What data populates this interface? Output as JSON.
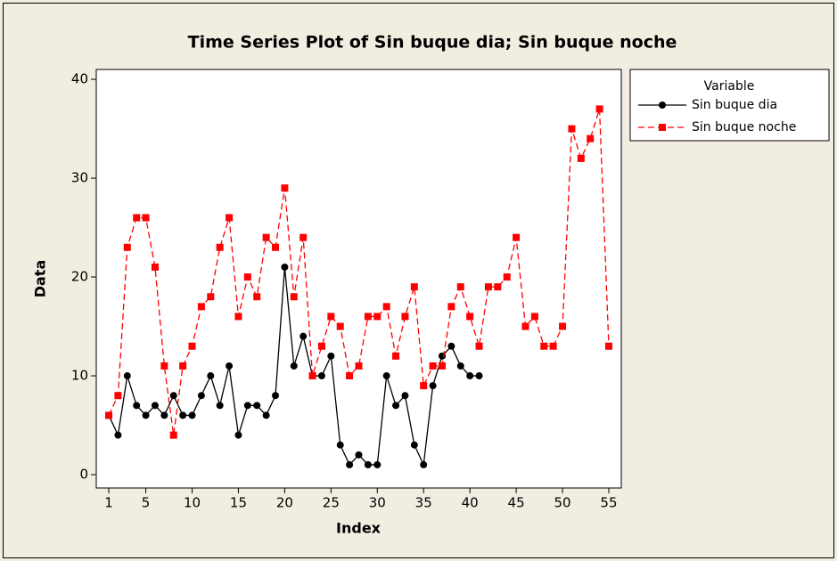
{
  "chart_data": {
    "type": "line",
    "title": "Time Series Plot of Sin buque dia; Sin buque noche",
    "xlabel": "Index",
    "ylabel": "Data",
    "legend_title": "Variable",
    "legend": "right",
    "x": [
      1,
      2,
      3,
      4,
      5,
      6,
      7,
      8,
      9,
      10,
      11,
      12,
      13,
      14,
      15,
      16,
      17,
      18,
      19,
      20,
      21,
      22,
      23,
      24,
      25,
      26,
      27,
      28,
      29,
      30,
      31,
      32,
      33,
      34,
      35,
      36,
      37,
      38,
      39,
      40,
      41,
      42,
      43,
      44,
      45,
      46,
      47,
      48,
      49,
      50,
      51,
      52,
      53,
      54,
      55
    ],
    "series": [
      {
        "name": "Sin buque dia",
        "color": "#000000",
        "marker": "circle",
        "dashed": false,
        "values": [
          6,
          4,
          10,
          7,
          6,
          7,
          6,
          8,
          6,
          6,
          8,
          10,
          7,
          11,
          4,
          7,
          7,
          6,
          8,
          21,
          11,
          14,
          10,
          10,
          12,
          3,
          1,
          2,
          1,
          1,
          10,
          7,
          8,
          3,
          1,
          9,
          12,
          13,
          11,
          10,
          10,
          null,
          null,
          null,
          null,
          null,
          null,
          null,
          null,
          null,
          null,
          null,
          null,
          null,
          null
        ]
      },
      {
        "name": "Sin buque noche",
        "color": "#ff0000",
        "marker": "square",
        "dashed": true,
        "values": [
          6,
          8,
          23,
          26,
          26,
          21,
          11,
          4,
          11,
          13,
          17,
          18,
          23,
          26,
          16,
          20,
          18,
          24,
          23,
          29,
          18,
          24,
          10,
          13,
          16,
          15,
          10,
          11,
          16,
          16,
          17,
          12,
          16,
          19,
          9,
          11,
          11,
          17,
          19,
          16,
          13,
          19,
          19,
          20,
          24,
          15,
          16,
          13,
          13,
          15,
          35,
          32,
          34,
          37,
          13
        ]
      }
    ],
    "xlim": [
      -0.35,
      56.35
    ],
    "ylim": [
      -1.35,
      41
    ],
    "xticks": [
      1,
      5,
      10,
      15,
      20,
      25,
      30,
      35,
      40,
      45,
      50,
      55
    ],
    "yticks": [
      0,
      10,
      20,
      30,
      40
    ]
  }
}
